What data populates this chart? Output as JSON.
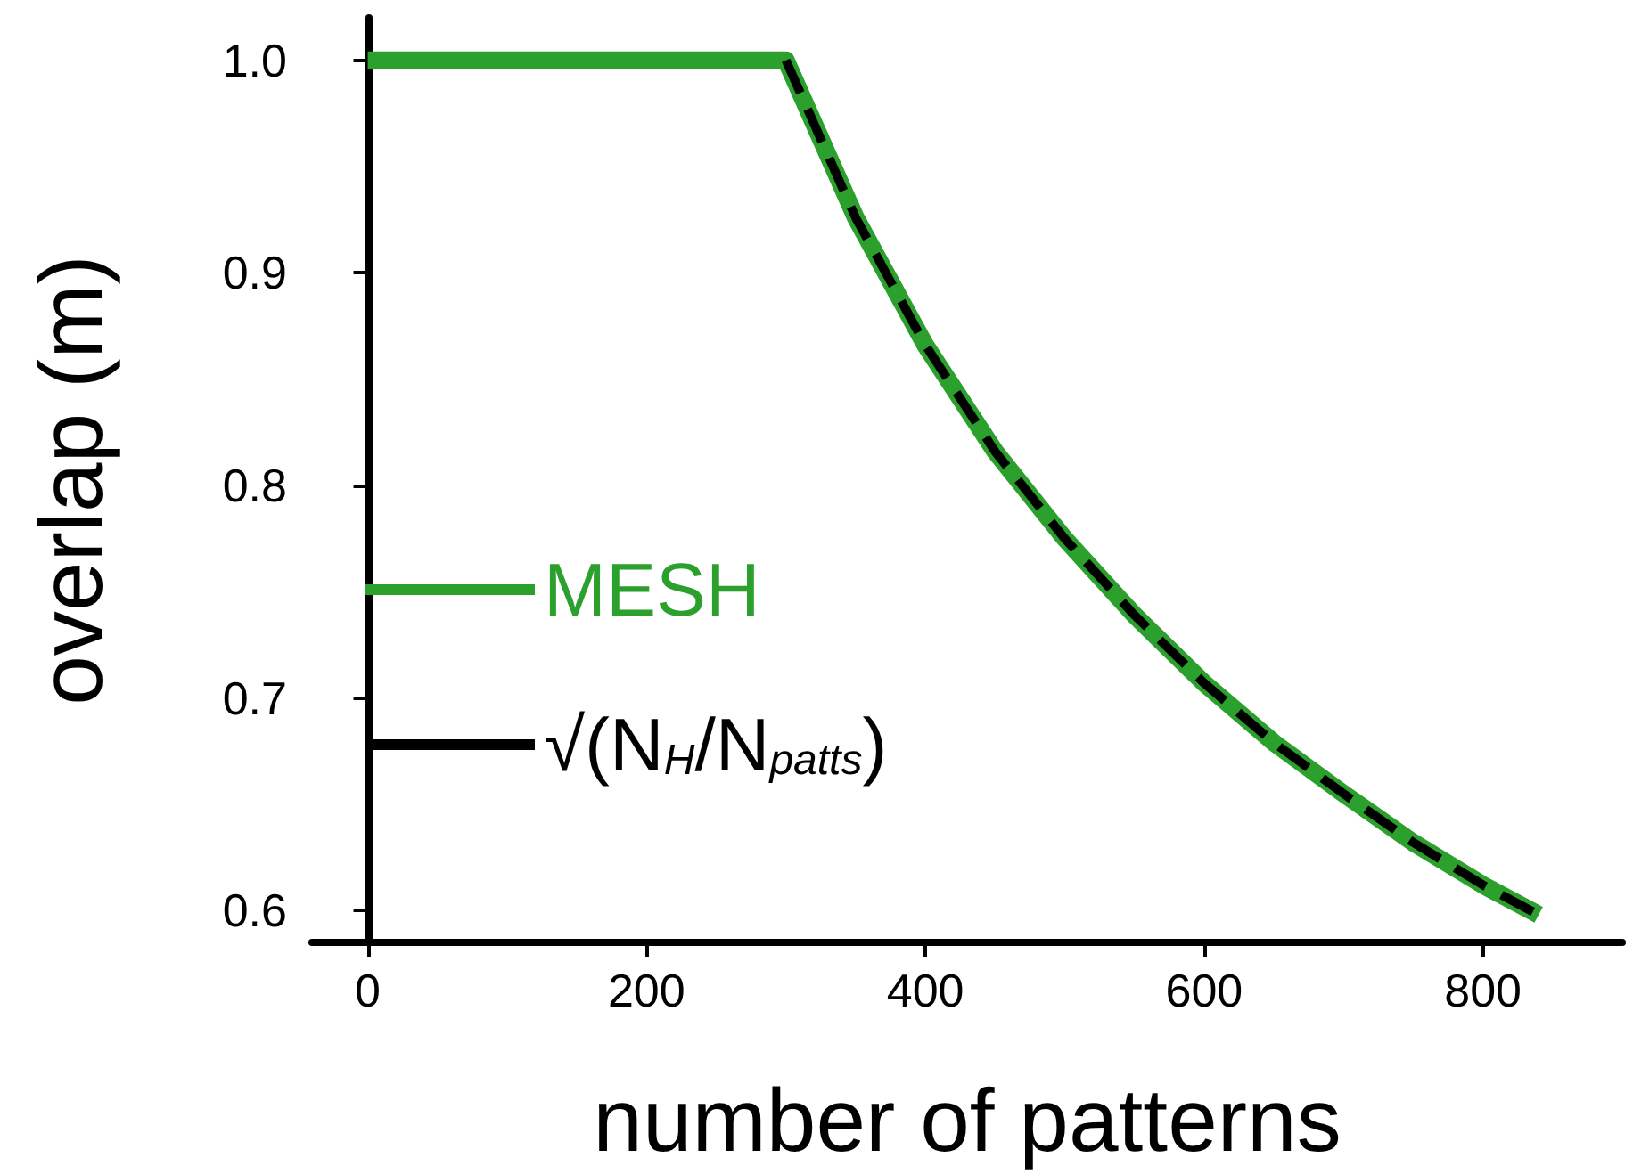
{
  "chart_data": {
    "type": "line",
    "xlabel": "number of patterns",
    "ylabel": "overlap (m)",
    "xlim": [
      -40,
      900
    ],
    "xticks": [
      0,
      200,
      400,
      600,
      800
    ],
    "ylim": [
      0.585,
      1.02
    ],
    "yticks": [
      {
        "value": 0.6,
        "label": "0.6"
      },
      {
        "value": 0.7,
        "label": "0.7"
      },
      {
        "value": 0.8,
        "label": "0.8"
      },
      {
        "value": 0.9,
        "label": "0.9"
      },
      {
        "value": 1,
        "label": "1.0"
      }
    ],
    "grid": false,
    "legend": "center left",
    "marker": "none",
    "series": [
      {
        "name": "MESH",
        "color": "#2ca02c",
        "line_style": "solid",
        "x": [
          0,
          100,
          200,
          300,
          350,
          400,
          450,
          500,
          550,
          600,
          650,
          700,
          750,
          800,
          840
        ],
        "values": [
          1.0,
          1.0,
          1.0,
          1.0,
          0.926,
          0.866,
          0.816,
          0.775,
          0.739,
          0.707,
          0.679,
          0.655,
          0.632,
          0.612,
          0.598
        ]
      },
      {
        "name": "√(N$_{H}$/N$_{patts}$)",
        "color": "#000000",
        "line_style": "dashed",
        "x": [
          300,
          350,
          400,
          450,
          500,
          550,
          600,
          650,
          700,
          750,
          800,
          840
        ],
        "values": [
          1.0,
          0.926,
          0.866,
          0.816,
          0.775,
          0.739,
          0.707,
          0.679,
          0.655,
          0.632,
          0.612,
          0.598
        ]
      }
    ]
  }
}
